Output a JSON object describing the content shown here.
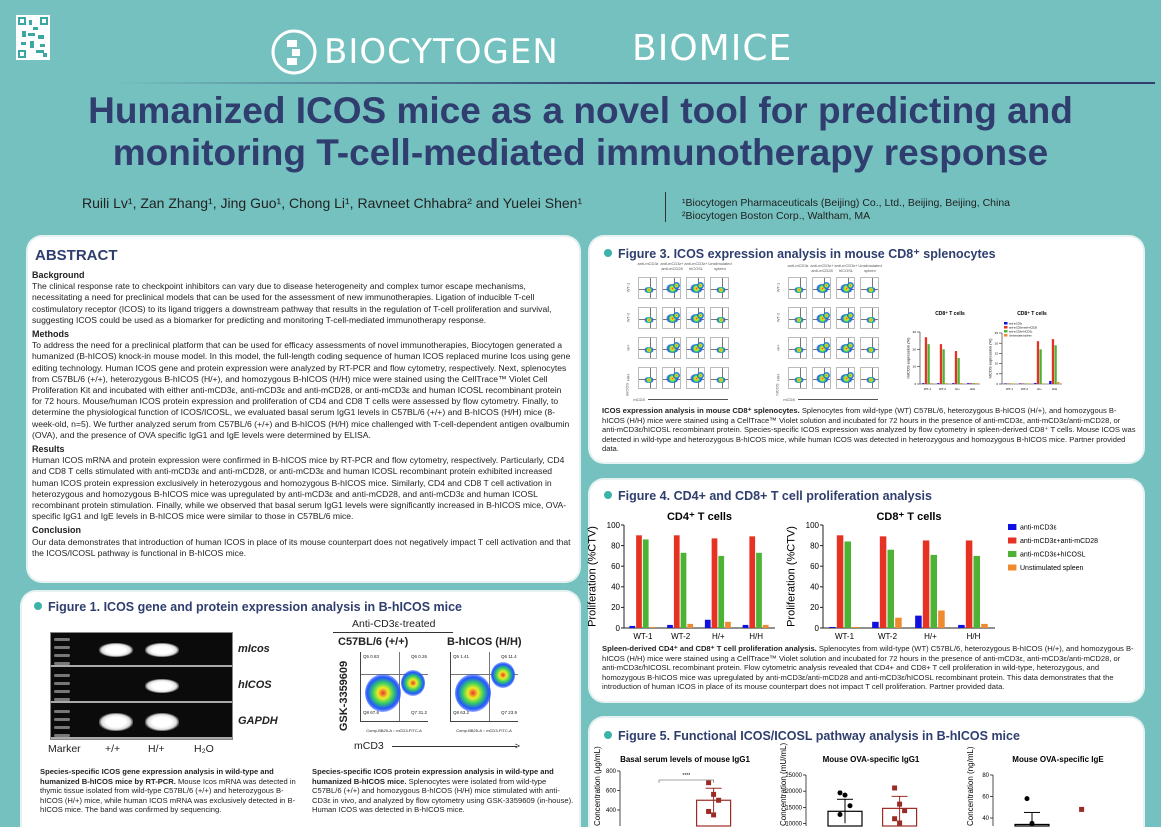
{
  "header": {
    "qr_icon": "qr-code-icon",
    "logo_biocytogen": "BIOCYTOGEN",
    "logo_biomice": "BIOMICE",
    "title_line1": "Humanized ICOS mice as a novel tool for predicting and",
    "title_line2": "monitoring T-cell-mediated immunotherapy response",
    "authors": "Ruili Lv¹, Zan Zhang¹, Jing Guo¹, Chong Li¹, Ravneet Chhabra² and Yuelei Shen¹",
    "affiliation1": "¹Biocytogen Pharmaceuticals (Beijing) Co., Ltd., Beijing, Beijing, China",
    "affiliation2": "²Biocytogen Boston Corp., Waltham, MA"
  },
  "colors": {
    "background": "#74c1bf",
    "title": "#2f3e6e",
    "accent_dot": "#3bb3a8",
    "blue": "#1010e0",
    "red": "#e53222",
    "green": "#4db335",
    "orange": "#f08a30",
    "wt_dot": "#000000",
    "hh_dot": "#9b2b25"
  },
  "abstract": {
    "heading": "ABSTRACT",
    "sections": [
      {
        "h": "Background",
        "t": "The clinical response rate to checkpoint inhibitors can vary due to disease heterogeneity and complex tumor escape mechanisms, necessitating a need for preclinical models that can be used for the assessment of new immunotherapies. Ligation of inducible T-cell costimulatory receptor (ICOS) to its ligand triggers a downstream pathway that results in the regulation of T-cell proliferation and survival, suggesting ICOS could be used as a biomarker for predicting and monitoring T-cell-mediated immunotherapy response."
      },
      {
        "h": "Methods",
        "t": "To address the need for a preclinical platform that can be used for efficacy assessments of novel immunotherapies, Biocytogen generated a humanized (B-hICOS) knock-in mouse model. In this model, the full-length coding sequence of human ICOS replaced murine Icos using gene editing technology. Human ICOS gene and protein expression were analyzed by RT-PCR and flow cytometry, respectively. Next, splenocytes from C57BL/6 (+/+), heterozygous B-hICOS (H/+), and homozygous B-hICOS (H/H) mice were stained using the CellTrace™ Violet Cell Proliferation Kit and incubated with either anti-mCD3ε, anti-mCD3ε and anti-mCD28, or anti-mCD3ε and human ICOSL recombinant protein for 72 hours. Mouse/human ICOS protein expression and proliferation of CD4 and CD8 T cells were assessed by flow cytometry. Finally, to determine the physiological function of ICOS/ICOSL, we evaluated basal serum IgG1 levels in C57BL/6 (+/+) and B-hICOS (H/H) mice (8-week-old, n=5). We further analyzed serum from C57BL/6 (+/+) and B-hICOS (H/H) mice challenged with T-cell-dependent antigen ovalbumin (OVA), and the presence of OVA specific IgG1 and IgE levels were determined by ELISA."
      },
      {
        "h": "Results",
        "t": "Human ICOS mRNA and protein expression were confirmed in B-hICOS mice by RT-PCR and flow cytometry, respectively. Particularly, CD4 and CD8 T cells stimulated with anti-mCD3ε and anti-mCD28, or anti-mCD3ε and human ICOSL recombinant protein exhibited increased human ICOS protein expression exclusively in heterozygous and homozygous B-hICOS mice. Similarly, CD4 and CD8 T cell activation in heterozygous and homozygous B-hICOS mice was upregulated by anti-mCD3ε and anti-mCD28, and anti-mCD3ε and human ICOSL recombinant protein stimulation. Finally, while we observed that basal serum IgG1 levels were significantly increased in B-hICOS mice, OVA-specific IgG1 and IgE levels in B-hICOS mice were similar to those in C57BL/6 mice."
      },
      {
        "h": "Conclusion",
        "t": "Our data demonstrates that introduction of human ICOS in place of its mouse counterpart does not negatively impact T cell activation and that the ICOS/ICOSL pathway is functional in B-hICOS mice."
      }
    ]
  },
  "fig1": {
    "title": "Figure 1. ICOS gene and protein expression analysis in B-hICOS mice",
    "gel_rows": [
      "mIcos",
      "hICOS",
      "GAPDH"
    ],
    "gel_lanes": [
      "Marker",
      "+/+",
      "H/+",
      "H₂O"
    ],
    "flow_header": "Anti-CD3ε-treated",
    "flow_groups": [
      "C57BL/6 (+/+)",
      "B-hICOS (H/H)"
    ],
    "flow_ylabel": "GSK-3359609",
    "flow_xlabel": "mCD3",
    "flow_quadrants": [
      [
        "Q5 0.83",
        "Q6 0.26",
        "Q8 67.6",
        "Q7 31.2"
      ],
      [
        "Q5 1.41",
        "Q6 11.4",
        "Q8 63.2",
        "Q7 23.9"
      ]
    ],
    "flow_axis_text": "Comp-BB25-A :: mCD3-FITC-A",
    "caption_left_bold": "Species-specific ICOS gene expression analysis in wild-type and humanized B-hICOS mice by RT-PCR.",
    "caption_left": " Mouse Icos mRNA was detected in thymic tissue isolated from wild-type C57BL/6 (+/+) and heterozygous B-hICOS (H/+) mice, while human ICOS mRNA was exclusively detected in B-hICOS mice. The band was confirmed by sequencing.",
    "caption_right_bold": "Species-specific ICOS protein expression analysis in wild-type and humanized B-hICOS mice.",
    "caption_right": " Splenocytes were isolated from wild-type C57BL/6 (+/+) and homozygous B-hICOS (H/H) mice stimulated with anti-CD3ε in vivo, and analyzed by flow cytometry using GSK-3359609 (in-house). Human ICOS was detected in B-hICOS mice."
  },
  "fig3": {
    "title": "Figure 3. ICOS expression analysis in mouse CD8⁺ splenocytes",
    "grid_columns": [
      "anti-mCD3ε",
      "anti-mCD3ε+ anti-mCD28",
      "anti-mCD3ε+ hICOSL",
      "Unstimulated spleen"
    ],
    "grid_rows": [
      "WT-1",
      "WT-2",
      "H/+",
      "H/H"
    ],
    "grid_left_ylabel": "mICOS",
    "grid_right_ylabel": "hICOS",
    "grid_xlabel": "mCD8",
    "caption_bold": "ICOS expression analysis in mouse CD8⁺ splenocytes.",
    "caption": " Splenocytes from wild-type (WT) C57BL/6, heterozygous B-hICOS (H/+), and homozygous B-hICOS (H/H) mice were stained using a CellTrace™ Violet solution and incubated for 72 hours in the presence of anti-mCD3ε, anti-mCD3ε/anti-mCD28, or anti-mCD3ε/hICOSL recombinant protein. Species-specific ICOS expression was analyzed by flow cytometry in spleen-derived CD8⁺ T cells. Mouse ICOS was detected in wild-type and heterozygous B-hICOS mice, while human ICOS was detected in heterozygous and homozygous B-hICOS mice. Partner provided data."
  },
  "fig4": {
    "title": "Figure 4. CD4+ and CD8+ T cell proliferation analysis",
    "caption_bold": "Spleen-derived CD4⁺ and CD8⁺ T cell proliferation analysis.",
    "caption": " Splenocytes from wild-type (WT) C57BL/6, heterozygous B-hICOS (H/+), and homozygous B-hICOS (H/H) mice were stained using a CellTrace™ Violet solution and incubated for 72 hours in the presence of anti-mCD3ε, anti-mCD3ε/anti-mCD28, or anti-mCD3ε/hICOSL recombinant protein. Flow cytometric analysis revealed that CD4+ and CD8+ T cell proliferation in wild-type, heterozygous, and homozygous B-hICOS mice was upregulated by anti-mCD3ε/anti-mCD28 and anti-mCD3ε/hICOSL recombinant protein. This data demonstrates that the introduction of human ICOS in place of its mouse counterpart does not impact T cell proliferation. Partner provided data."
  },
  "fig5": {
    "title": "Figure 5. Functional ICOS/ICOSL pathway analysis in B-hICOS mice"
  },
  "chart_data": [
    {
      "id": "fig3-mICOS",
      "type": "bar",
      "title": "CD8⁺ T cells",
      "ylabel": "mICOS expression (%)",
      "categories": [
        "WT-1",
        "WT-2",
        "H/+",
        "H/H"
      ],
      "ylim": [
        0,
        30
      ],
      "yticks": [
        0,
        10,
        20,
        30
      ],
      "series": [
        {
          "name": "anti-mCD3ε",
          "color": "#1010e0",
          "values": [
            0.5,
            0.5,
            0.5,
            0.5
          ]
        },
        {
          "name": "anti-mCD3ε+anti-mCD28",
          "color": "#e53222",
          "values": [
            27,
            23,
            19,
            0.5
          ]
        },
        {
          "name": "anti-mCD3ε+hICOSL",
          "color": "#4db335",
          "values": [
            23,
            20,
            15,
            0.5
          ]
        },
        {
          "name": "Unstimulated spleen",
          "color": "#f08a30",
          "values": [
            0.5,
            0.5,
            0.5,
            0.5
          ]
        }
      ]
    },
    {
      "id": "fig3-hICOS",
      "type": "bar",
      "title": "CD8⁺ T cells",
      "ylabel": "hICOS expression (%)",
      "categories": [
        "WT-1",
        "WT-2",
        "H/+",
        "H/H"
      ],
      "ylim": [
        0,
        25
      ],
      "yticks": [
        0,
        5,
        10,
        15,
        20,
        25
      ],
      "legend": "top-left",
      "series": [
        {
          "name": "anti-mCD3ε",
          "color": "#1010e0",
          "values": [
            0.3,
            0.3,
            0.5,
            1.5
          ]
        },
        {
          "name": "anti-mCD3ε+anti-mCD28",
          "color": "#e53222",
          "values": [
            0.3,
            0.3,
            21,
            22
          ]
        },
        {
          "name": "anti-mCD3ε+hICOSL",
          "color": "#4db335",
          "values": [
            0.3,
            0.3,
            17,
            19
          ]
        },
        {
          "name": "Unstimulated spleen",
          "color": "#f08a30",
          "values": [
            0.3,
            0.3,
            0.3,
            1
          ]
        }
      ]
    },
    {
      "id": "fig4-cd4",
      "type": "bar",
      "title": "CD4⁺ T cells",
      "ylabel": "Proliferation (%CTV)",
      "categories": [
        "WT-1",
        "WT-2",
        "H/+",
        "H/H"
      ],
      "ylim": [
        0,
        100
      ],
      "yticks": [
        0,
        20,
        40,
        60,
        80,
        100
      ],
      "series": [
        {
          "name": "anti-mCD3ε",
          "color": "#1010e0",
          "values": [
            2,
            3,
            8,
            3
          ]
        },
        {
          "name": "anti-mCD3ε+anti-mCD28",
          "color": "#e53222",
          "values": [
            90,
            90,
            87,
            89
          ]
        },
        {
          "name": "anti-mCD3ε+hICOSL",
          "color": "#4db335",
          "values": [
            86,
            73,
            70,
            73
          ]
        },
        {
          "name": "Unstimulated spleen",
          "color": "#f08a30",
          "values": [
            1,
            4,
            6,
            3
          ]
        }
      ]
    },
    {
      "id": "fig4-cd8",
      "type": "bar",
      "title": "CD8⁺ T cells",
      "ylabel": "Proliferation (%CTV)",
      "categories": [
        "WT-1",
        "WT-2",
        "H/+",
        "H/H"
      ],
      "ylim": [
        0,
        100
      ],
      "yticks": [
        0,
        20,
        40,
        60,
        80,
        100
      ],
      "legend": "right",
      "series": [
        {
          "name": "anti-mCD3ε",
          "color": "#1010e0",
          "values": [
            1,
            6,
            12,
            3
          ]
        },
        {
          "name": "anti-mCD3ε+anti-mCD28",
          "color": "#e53222",
          "values": [
            90,
            89,
            85,
            85
          ]
        },
        {
          "name": "anti-mCD3ε+hICOSL",
          "color": "#4db335",
          "values": [
            84,
            76,
            71,
            70
          ]
        },
        {
          "name": "Unstimulated spleen",
          "color": "#f08a30",
          "values": [
            1,
            10,
            17,
            4
          ]
        }
      ]
    },
    {
      "id": "fig5-igg1",
      "type": "scatter",
      "title": "Basal serum levels of mouse IgG1",
      "ylabel": "Concentration (μg/mL)",
      "yticks": [
        400,
        600,
        800
      ],
      "ylim": [
        0,
        800
      ],
      "annotation": "****",
      "groups": [
        {
          "mean": null,
          "points": []
        },
        {
          "mean": 500,
          "color": "#9b2b25",
          "points": [
            680,
            560,
            500,
            385,
            350
          ]
        }
      ]
    },
    {
      "id": "fig5-ova-igg1",
      "type": "scatter",
      "title": "Mouse OVA-specific IgG1",
      "ylabel": "Concentration (mU/mL)",
      "yticks": [
        10000,
        15000,
        20000,
        25000
      ],
      "ylim": [
        0,
        25000
      ],
      "groups": [
        {
          "mean": 13800,
          "color": "#000000",
          "points": [
            19500,
            18800,
            15500,
            12800
          ]
        },
        {
          "mean": 14700,
          "color": "#9b2b25",
          "points": [
            21000,
            16000,
            14000,
            11500,
            10200
          ]
        }
      ]
    },
    {
      "id": "fig5-ova-ige",
      "type": "scatter",
      "title": "Mouse OVA-specific IgE",
      "ylabel": "Concentration (ng/mL)",
      "yticks": [
        40,
        60,
        80
      ],
      "ylim": [
        0,
        80
      ],
      "groups": [
        {
          "mean": 34,
          "color": "#000000",
          "points": [
            58,
            35
          ]
        },
        {
          "mean": null,
          "color": "#9b2b25",
          "points": [
            48
          ]
        }
      ]
    }
  ]
}
